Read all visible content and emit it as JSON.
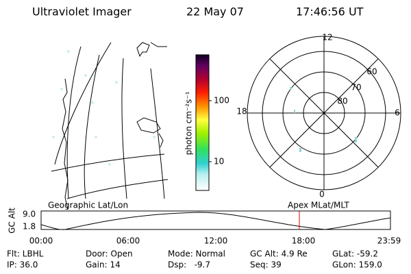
{
  "header": {
    "title": "Ultraviolet Imager",
    "date": "22 May 07",
    "time": "17:46:56 UT"
  },
  "colorbar": {
    "label": "photon cm⁻²s⁻¹",
    "ticks": [
      "100",
      "10"
    ]
  },
  "polar": {
    "hours": [
      "12",
      "6",
      "0",
      "18"
    ],
    "latitudes": [
      "60",
      "70",
      "80"
    ]
  },
  "timeline": {
    "left_label": "Geographic Lat/Lon",
    "right_label": "Apex  MLat/MLT",
    "axis_label": "GC Alt",
    "yticks": [
      "9.0",
      "1.8"
    ],
    "xticks": [
      "00:00",
      "06:00",
      "12:00",
      "18:00",
      "23:59"
    ]
  },
  "footer": {
    "rows": [
      [
        "Flt: LBHL",
        "Door: Open",
        "Mode: Normal",
        "GC Alt: 4.9 Re",
        "GLat: -59.2"
      ],
      [
        "IP: 36.0",
        "Gain: 14",
        "Dsp:   -9.7",
        "Seq: 39",
        "GLon: 159.0"
      ]
    ]
  }
}
